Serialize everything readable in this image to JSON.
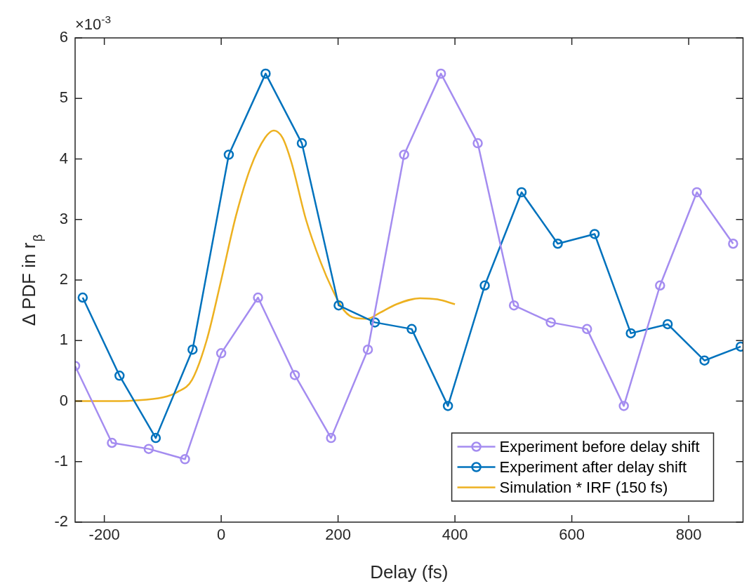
{
  "chart_data": {
    "type": "line",
    "xlabel": "Delay (fs)",
    "ylabel": "Δ PDF in r$_{β}$",
    "annotations": [
      "×10$^{-3}$"
    ],
    "xlim": [
      -250,
      893
    ],
    "xticks": [
      -200,
      0,
      200,
      400,
      600,
      800
    ],
    "ylim": [
      -2,
      6
    ],
    "yticks": [
      -2,
      -1,
      0,
      1,
      2,
      3,
      4,
      5,
      6
    ],
    "grid": false,
    "legend": "bottom right",
    "marker": "circle",
    "line_style": "solid",
    "series": [
      {
        "name": "Experiment before delay shift",
        "color": "#a48cf0",
        "x": [
          -250,
          -187,
          -124,
          -62,
          0,
          63,
          126,
          188,
          251,
          313,
          376,
          439,
          501,
          564,
          626,
          689,
          751,
          814,
          876
        ],
        "values": [
          0.58,
          -0.69,
          -0.79,
          -0.96,
          0.79,
          1.71,
          0.43,
          -0.61,
          0.85,
          4.07,
          5.41,
          4.26,
          1.58,
          1.3,
          1.19,
          -0.08,
          1.91,
          3.45,
          2.6
        ]
      },
      {
        "name": "Experiment after delay shift",
        "color": "#0072bd",
        "x": [
          -237,
          -174,
          -112,
          -49,
          13,
          76,
          138,
          201,
          263,
          326,
          388,
          451,
          514,
          576,
          639,
          701,
          764,
          827,
          889
        ],
        "values": [
          1.71,
          0.42,
          -0.61,
          0.85,
          4.07,
          5.41,
          4.26,
          1.58,
          1.3,
          1.19,
          -0.08,
          1.91,
          3.45,
          2.6,
          2.76,
          1.12,
          1.27,
          0.67,
          0.9
        ]
      },
      {
        "name": "Simulation * IRF (150 fs)",
        "color": "#edb120",
        "marker": "none",
        "x": [
          -250,
          -200,
          -150,
          -100,
          -75,
          -50,
          -25,
          0,
          25,
          50,
          75,
          90,
          105,
          120,
          145,
          170,
          190,
          210,
          230,
          250,
          270,
          300,
          340,
          370,
          400
        ],
        "values": [
          0,
          0,
          0.01,
          0.06,
          0.15,
          0.35,
          1.0,
          2.0,
          3.05,
          3.85,
          4.35,
          4.47,
          4.35,
          3.95,
          3.0,
          2.3,
          1.85,
          1.5,
          1.37,
          1.36,
          1.45,
          1.6,
          1.7,
          1.68,
          1.6
        ]
      }
    ]
  }
}
